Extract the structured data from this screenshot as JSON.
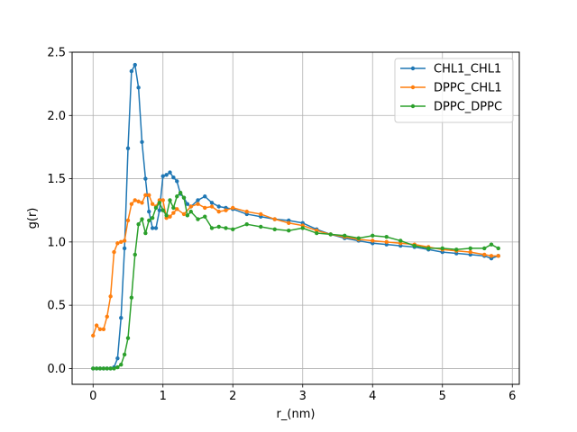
{
  "chart_data": {
    "type": "line",
    "xlabel": "r_(nm)",
    "ylabel": "g(r)",
    "xlim": [
      -0.3,
      6.1
    ],
    "ylim": [
      -0.125,
      2.5
    ],
    "xticks": [
      "0",
      "1",
      "2",
      "3",
      "4",
      "5",
      "6"
    ],
    "yticks": [
      "0.0",
      "0.5",
      "1.0",
      "1.5",
      "2.0",
      "2.5"
    ],
    "grid": true,
    "legend_position": "top-right",
    "series": [
      {
        "name": "CHL1_CHL1",
        "color": "#1f77b4",
        "x": [
          0.0,
          0.05,
          0.1,
          0.15,
          0.2,
          0.25,
          0.3,
          0.35,
          0.4,
          0.45,
          0.5,
          0.55,
          0.6,
          0.65,
          0.7,
          0.75,
          0.8,
          0.85,
          0.9,
          0.95,
          1.0,
          1.05,
          1.1,
          1.15,
          1.2,
          1.25,
          1.3,
          1.35,
          1.4,
          1.5,
          1.6,
          1.7,
          1.8,
          1.9,
          2.0,
          2.2,
          2.4,
          2.6,
          2.8,
          3.0,
          3.2,
          3.4,
          3.6,
          3.8,
          4.0,
          4.2,
          4.4,
          4.6,
          4.8,
          5.0,
          5.2,
          5.4,
          5.6,
          5.7,
          5.8
        ],
        "values": [
          0.0,
          0.0,
          0.0,
          0.0,
          0.0,
          0.0,
          0.01,
          0.08,
          0.4,
          0.95,
          1.74,
          2.35,
          2.4,
          2.22,
          1.79,
          1.5,
          1.24,
          1.11,
          1.11,
          1.25,
          1.52,
          1.53,
          1.55,
          1.51,
          1.48,
          1.38,
          1.35,
          1.3,
          1.28,
          1.33,
          1.36,
          1.31,
          1.28,
          1.27,
          1.26,
          1.22,
          1.2,
          1.18,
          1.17,
          1.15,
          1.1,
          1.06,
          1.03,
          1.01,
          0.99,
          0.98,
          0.97,
          0.96,
          0.94,
          0.92,
          0.91,
          0.9,
          0.89,
          0.87,
          0.89
        ]
      },
      {
        "name": "DPPC_CHL1",
        "color": "#ff7f0e",
        "x": [
          0.0,
          0.05,
          0.1,
          0.15,
          0.2,
          0.25,
          0.3,
          0.35,
          0.4,
          0.45,
          0.5,
          0.55,
          0.6,
          0.65,
          0.7,
          0.75,
          0.8,
          0.85,
          0.9,
          0.95,
          1.0,
          1.05,
          1.1,
          1.15,
          1.2,
          1.3,
          1.4,
          1.5,
          1.6,
          1.7,
          1.8,
          1.9,
          2.0,
          2.2,
          2.4,
          2.6,
          2.8,
          3.0,
          3.2,
          3.4,
          3.6,
          3.8,
          4.0,
          4.2,
          4.4,
          4.6,
          4.8,
          5.0,
          5.2,
          5.4,
          5.6,
          5.7,
          5.8
        ],
        "values": [
          0.26,
          0.34,
          0.31,
          0.31,
          0.41,
          0.57,
          0.92,
          0.99,
          1.0,
          1.01,
          1.17,
          1.3,
          1.33,
          1.32,
          1.31,
          1.37,
          1.37,
          1.3,
          1.28,
          1.33,
          1.33,
          1.19,
          1.2,
          1.23,
          1.26,
          1.22,
          1.28,
          1.3,
          1.27,
          1.28,
          1.24,
          1.25,
          1.27,
          1.24,
          1.22,
          1.18,
          1.15,
          1.13,
          1.09,
          1.06,
          1.04,
          1.02,
          1.01,
          1.0,
          0.99,
          0.98,
          0.96,
          0.94,
          0.93,
          0.92,
          0.9,
          0.89,
          0.89
        ]
      },
      {
        "name": "DPPC_DPPC",
        "color": "#2ca02c",
        "x": [
          0.0,
          0.05,
          0.1,
          0.15,
          0.2,
          0.25,
          0.3,
          0.35,
          0.4,
          0.45,
          0.5,
          0.55,
          0.6,
          0.65,
          0.7,
          0.75,
          0.8,
          0.85,
          0.9,
          0.95,
          1.0,
          1.05,
          1.1,
          1.15,
          1.2,
          1.25,
          1.3,
          1.35,
          1.4,
          1.5,
          1.6,
          1.7,
          1.8,
          1.9,
          2.0,
          2.2,
          2.4,
          2.6,
          2.8,
          3.0,
          3.2,
          3.4,
          3.6,
          3.8,
          4.0,
          4.2,
          4.4,
          4.6,
          4.8,
          5.0,
          5.2,
          5.4,
          5.6,
          5.7,
          5.8
        ],
        "values": [
          0.0,
          0.0,
          0.0,
          0.0,
          0.0,
          0.0,
          0.0,
          0.01,
          0.03,
          0.11,
          0.24,
          0.56,
          0.9,
          1.14,
          1.18,
          1.07,
          1.17,
          1.19,
          1.27,
          1.31,
          1.25,
          1.21,
          1.33,
          1.27,
          1.36,
          1.39,
          1.35,
          1.21,
          1.24,
          1.18,
          1.2,
          1.11,
          1.12,
          1.11,
          1.1,
          1.14,
          1.12,
          1.1,
          1.09,
          1.11,
          1.07,
          1.06,
          1.05,
          1.03,
          1.05,
          1.04,
          1.01,
          0.97,
          0.95,
          0.95,
          0.94,
          0.95,
          0.95,
          0.98,
          0.95
        ]
      }
    ]
  }
}
